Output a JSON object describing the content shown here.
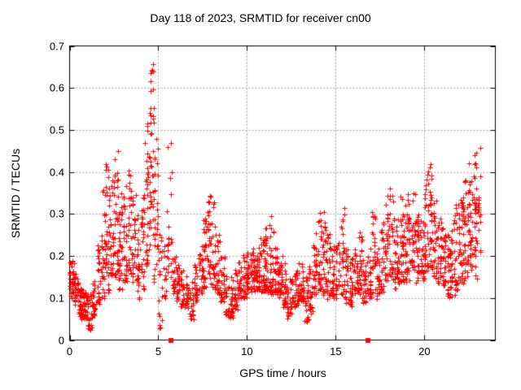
{
  "colors": {
    "background": "#ffffff",
    "points": "#ff0000",
    "grid": "#a0a0a0",
    "border": "#000000",
    "text": "#000000"
  },
  "chart_data": {
    "type": "scatter",
    "title": "Day 118 of 2023, SRMTID for receiver cn00",
    "xlabel": "GPS time / hours",
    "ylabel": "SRMTID / TECUs",
    "xlim": [
      0,
      24
    ],
    "ylim": [
      0,
      0.7
    ],
    "xticks": [
      0,
      5,
      10,
      15,
      20
    ],
    "xtick_labels": [
      "0",
      "5",
      "10",
      "15",
      "20"
    ],
    "yticks": [
      0,
      0.1,
      0.2,
      0.3,
      0.4,
      0.5,
      0.6,
      0.7
    ],
    "ytick_labels": [
      "0",
      "0.1",
      "0.2",
      "0.3",
      "0.4",
      "0.5",
      "0.6",
      "0.7"
    ],
    "grid": "dashed-gray-at-major-ticks",
    "legend_position": "none",
    "marker": "plus",
    "approx_total_points": 2500,
    "x_data_max": 23.15,
    "bin_width": 0.25,
    "series": [
      {
        "name": "srmtid",
        "marker": "plus",
        "color": "#ff0000",
        "envelope_bins_format": "[hour_start, y_min, y_max, relative_count]",
        "envelope_bins": [
          [
            0.0,
            0.11,
            0.19,
            26
          ],
          [
            0.25,
            0.09,
            0.16,
            22
          ],
          [
            0.5,
            0.06,
            0.13,
            24
          ],
          [
            0.75,
            0.05,
            0.12,
            24
          ],
          [
            1.0,
            0.03,
            0.11,
            20
          ],
          [
            1.25,
            0.06,
            0.14,
            18
          ],
          [
            1.5,
            0.08,
            0.22,
            18
          ],
          [
            1.75,
            0.1,
            0.36,
            22
          ],
          [
            2.0,
            0.12,
            0.44,
            24
          ],
          [
            2.25,
            0.15,
            0.38,
            24
          ],
          [
            2.5,
            0.15,
            0.45,
            24
          ],
          [
            2.75,
            0.12,
            0.35,
            22
          ],
          [
            3.0,
            0.14,
            0.37,
            22
          ],
          [
            3.25,
            0.16,
            0.42,
            20
          ],
          [
            3.5,
            0.14,
            0.35,
            20
          ],
          [
            3.75,
            0.1,
            0.31,
            20
          ],
          [
            4.0,
            0.12,
            0.36,
            20
          ],
          [
            4.25,
            0.18,
            0.52,
            24
          ],
          [
            4.5,
            0.22,
            0.66,
            30
          ],
          [
            4.75,
            0.14,
            0.5,
            22
          ],
          [
            5.0,
            0.03,
            0.3,
            14
          ],
          [
            5.25,
            0.1,
            0.28,
            12
          ],
          [
            5.5,
            0.15,
            0.47,
            16
          ],
          [
            5.75,
            0.12,
            0.2,
            14
          ],
          [
            6.0,
            0.1,
            0.18,
            18
          ],
          [
            6.25,
            0.08,
            0.17,
            18
          ],
          [
            6.5,
            0.08,
            0.15,
            16
          ],
          [
            6.75,
            0.05,
            0.14,
            16
          ],
          [
            7.0,
            0.09,
            0.18,
            18
          ],
          [
            7.25,
            0.11,
            0.22,
            18
          ],
          [
            7.5,
            0.12,
            0.3,
            20
          ],
          [
            7.75,
            0.14,
            0.35,
            22
          ],
          [
            8.0,
            0.12,
            0.33,
            20
          ],
          [
            8.25,
            0.11,
            0.25,
            18
          ],
          [
            8.5,
            0.09,
            0.2,
            18
          ],
          [
            8.75,
            0.06,
            0.16,
            18
          ],
          [
            9.0,
            0.05,
            0.15,
            18
          ],
          [
            9.25,
            0.08,
            0.17,
            18
          ],
          [
            9.5,
            0.1,
            0.19,
            20
          ],
          [
            9.75,
            0.1,
            0.2,
            20
          ],
          [
            10.0,
            0.11,
            0.21,
            22
          ],
          [
            10.25,
            0.12,
            0.22,
            22
          ],
          [
            10.5,
            0.12,
            0.22,
            22
          ],
          [
            10.75,
            0.12,
            0.25,
            22
          ],
          [
            11.0,
            0.12,
            0.28,
            22
          ],
          [
            11.25,
            0.11,
            0.3,
            22
          ],
          [
            11.5,
            0.11,
            0.22,
            20
          ],
          [
            11.75,
            0.1,
            0.2,
            20
          ],
          [
            12.0,
            0.08,
            0.18,
            18
          ],
          [
            12.25,
            0.05,
            0.15,
            18
          ],
          [
            12.5,
            0.08,
            0.16,
            18
          ],
          [
            12.75,
            0.09,
            0.18,
            18
          ],
          [
            13.0,
            0.09,
            0.18,
            18
          ],
          [
            13.25,
            0.04,
            0.15,
            16
          ],
          [
            13.5,
            0.07,
            0.2,
            18
          ],
          [
            13.75,
            0.11,
            0.28,
            20
          ],
          [
            14.0,
            0.12,
            0.33,
            22
          ],
          [
            14.25,
            0.11,
            0.3,
            20
          ],
          [
            14.5,
            0.1,
            0.26,
            18
          ],
          [
            14.75,
            0.1,
            0.22,
            18
          ],
          [
            15.0,
            0.1,
            0.25,
            18
          ],
          [
            15.25,
            0.11,
            0.32,
            18
          ],
          [
            15.5,
            0.09,
            0.22,
            18
          ],
          [
            15.75,
            0.08,
            0.2,
            18
          ],
          [
            16.0,
            0.1,
            0.22,
            18
          ],
          [
            16.25,
            0.11,
            0.26,
            18
          ],
          [
            16.5,
            0.09,
            0.2,
            18
          ],
          [
            16.75,
            0.1,
            0.22,
            18
          ],
          [
            17.0,
            0.11,
            0.33,
            18
          ],
          [
            17.25,
            0.1,
            0.22,
            18
          ],
          [
            17.5,
            0.12,
            0.28,
            18
          ],
          [
            17.75,
            0.14,
            0.35,
            20
          ],
          [
            18.0,
            0.14,
            0.37,
            20
          ],
          [
            18.25,
            0.13,
            0.3,
            20
          ],
          [
            18.5,
            0.14,
            0.35,
            20
          ],
          [
            18.75,
            0.14,
            0.33,
            20
          ],
          [
            19.0,
            0.15,
            0.35,
            20
          ],
          [
            19.25,
            0.16,
            0.35,
            20
          ],
          [
            19.5,
            0.14,
            0.3,
            20
          ],
          [
            19.75,
            0.15,
            0.32,
            20
          ],
          [
            20.0,
            0.17,
            0.4,
            22
          ],
          [
            20.25,
            0.17,
            0.42,
            22
          ],
          [
            20.5,
            0.15,
            0.33,
            20
          ],
          [
            20.75,
            0.14,
            0.3,
            20
          ],
          [
            21.0,
            0.13,
            0.28,
            20
          ],
          [
            21.25,
            0.1,
            0.25,
            20
          ],
          [
            21.5,
            0.1,
            0.3,
            20
          ],
          [
            21.75,
            0.12,
            0.33,
            22
          ],
          [
            22.0,
            0.14,
            0.35,
            22
          ],
          [
            22.25,
            0.15,
            0.38,
            22
          ],
          [
            22.5,
            0.16,
            0.42,
            22
          ],
          [
            22.75,
            0.15,
            0.46,
            24
          ],
          [
            23.0,
            0.2,
            0.47,
            12
          ]
        ]
      },
      {
        "name": "event-markers",
        "marker": "filled-square",
        "color": "#ff0000",
        "points": [
          [
            5.7,
            0
          ],
          [
            16.82,
            0
          ]
        ]
      }
    ]
  }
}
